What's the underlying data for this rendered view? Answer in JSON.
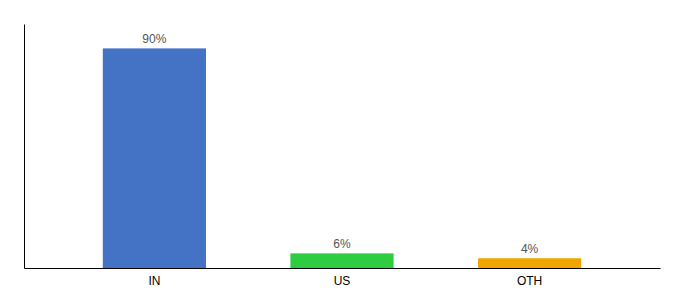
{
  "chart_data": {
    "type": "bar",
    "categories": [
      "IN",
      "US",
      "OTH"
    ],
    "values": [
      90,
      6,
      4
    ],
    "value_labels": [
      "90%",
      "6%",
      "4%"
    ],
    "colors": [
      "#4472c4",
      "#2ecc40",
      "#f0a500"
    ],
    "ylim": [
      0,
      100
    ],
    "data_labels": true,
    "tick_labels": "x"
  }
}
